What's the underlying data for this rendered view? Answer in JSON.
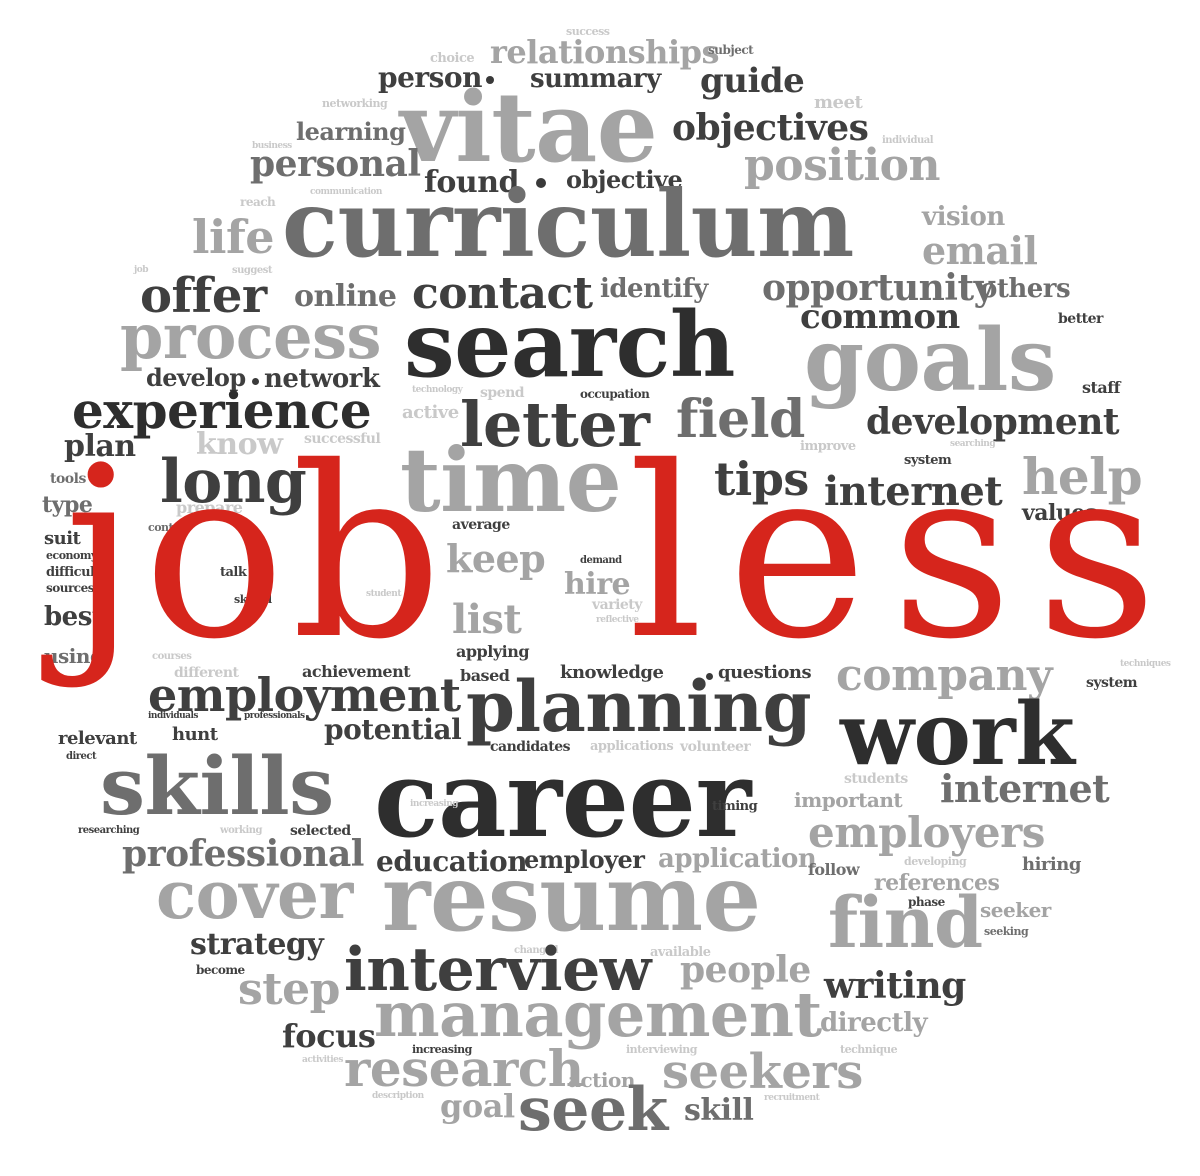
{
  "wordcloud": {
    "headline": {
      "job": "job",
      "less": "less"
    },
    "colors": {
      "red": "#d6251c",
      "dark": "#3a3a3a",
      "mid": "#6e6e6e",
      "light": "#a4a4a4"
    },
    "words": {
      "success": "success",
      "choice": "choice",
      "subject": "subject",
      "relationships": "relationships",
      "person": "person",
      "summary": "summary",
      "guide": "guide",
      "networking": "networking",
      "meet": "meet",
      "vitae": "vitae",
      "objectives": "objectives",
      "learning": "learning",
      "business": "business",
      "individual": "individual",
      "personal": "personal",
      "position": "position",
      "found": "found",
      "objective": "objective",
      "communication": "communication",
      "reach": "reach",
      "curriculum": "curriculum",
      "vision": "vision",
      "life": "life",
      "email": "email",
      "suggest": "suggest",
      "job_left": "job",
      "offer": "offer",
      "online": "online",
      "contact": "contact",
      "identify": "identify",
      "opportunity": "opportunity",
      "others": "others",
      "process": "process",
      "search": "search",
      "common": "common",
      "better": "better",
      "goals": "goals",
      "develop": "develop",
      "network": "network",
      "technology": "technology",
      "spend": "spend",
      "occupation": "occupation",
      "staff": "staff",
      "experience": "experience",
      "active": "active",
      "letter": "letter",
      "field": "field",
      "development": "development",
      "know": "know",
      "successful": "successful",
      "improve": "improve",
      "searching": "searching",
      "plan": "plan",
      "time": "time",
      "system": "system",
      "long": "long",
      "tips": "tips",
      "internet": "internet",
      "help": "help",
      "tools": "tools",
      "type": "type",
      "prepare": "prepare",
      "control": "control",
      "values": "values",
      "average": "average",
      "suit": "suit",
      "economy": "economy",
      "difficult": "difficult",
      "sources": "sources",
      "keep": "keep",
      "talk": "talk",
      "skilled": "skilled",
      "demand": "demand",
      "hire": "hire",
      "variety": "variety",
      "student": "student",
      "best": "best",
      "reflective": "reflective",
      "list": "list",
      "using": "using",
      "courses": "courses",
      "applying": "applying",
      "different": "different",
      "achievement": "achievement",
      "based": "based",
      "knowledge": "knowledge",
      "questions": "questions",
      "company": "company",
      "techniques": "techniques",
      "system_right": "system",
      "employment": "employment",
      "planning": "planning",
      "individuals": "individuals",
      "professionals": "professionals",
      "relevant": "relevant",
      "hunt": "hunt",
      "potential": "potential",
      "work": "work",
      "direct": "direct",
      "candidates": "candidates",
      "applications": "applications",
      "volunteer": "volunteer",
      "skills": "skills",
      "career": "career",
      "students": "students",
      "important": "important",
      "internet2": "internet",
      "increasing": "increasing",
      "timing": "timing",
      "researching": "researching",
      "working": "working",
      "selected": "selected",
      "employers": "employers",
      "professional": "professional",
      "education": "education",
      "employer": "employer",
      "application": "application",
      "follow": "follow",
      "developing": "developing",
      "hiring": "hiring",
      "references": "references",
      "cover": "cover",
      "resume": "resume",
      "find": "find",
      "phase": "phase",
      "seeker": "seeker",
      "seeking": "seeking",
      "strategy": "strategy",
      "changed": "changed",
      "available": "available",
      "become": "become",
      "interview": "interview",
      "people": "people",
      "step": "step",
      "writing": "writing",
      "management": "management",
      "directly": "directly",
      "focus": "focus",
      "activities": "activities",
      "interviewing": "interviewing",
      "technique": "technique",
      "research": "research",
      "action": "action",
      "seekers": "seekers",
      "description": "description",
      "goal": "goal",
      "seek": "seek",
      "skill": "skill",
      "recruitment": "recruitment"
    }
  }
}
